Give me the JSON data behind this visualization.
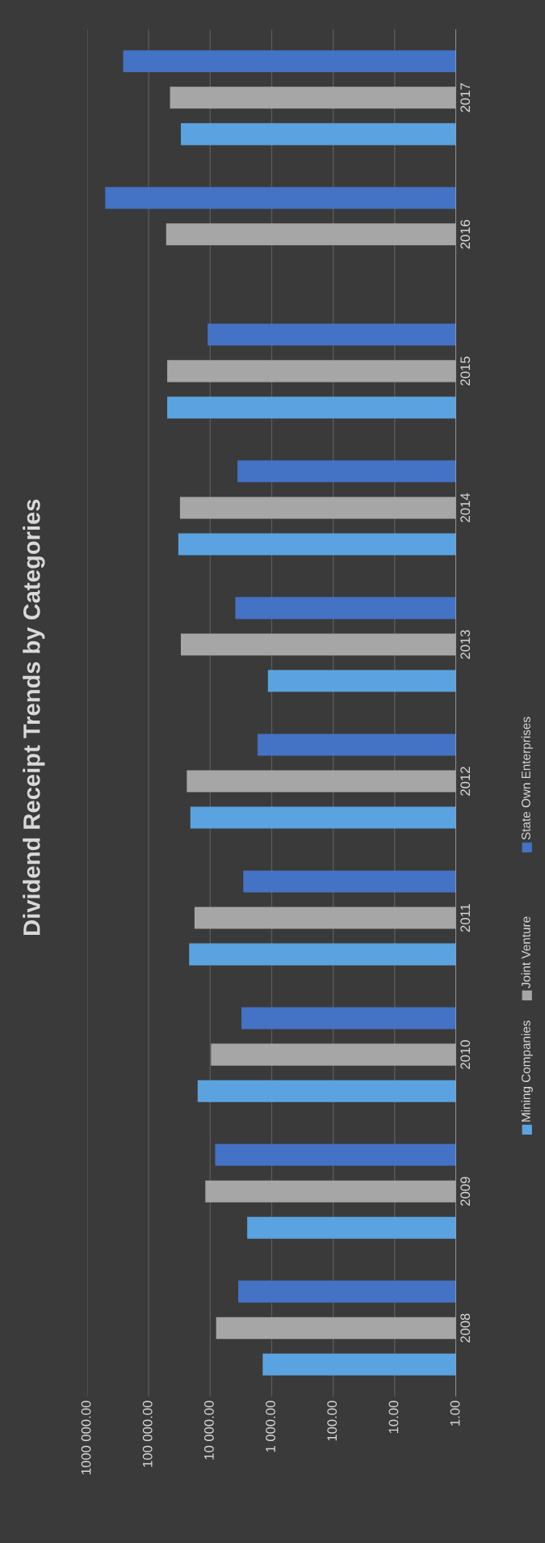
{
  "chart_data": {
    "type": "bar",
    "orientation": "horizontal",
    "title": "Dividend Receipt Trends by Categories",
    "categories": [
      "2017",
      "2016",
      "2015",
      "2014",
      "2013",
      "2012",
      "2011",
      "2010",
      "2009",
      "2008"
    ],
    "series": [
      {
        "name": "Mining Companies",
        "color": "#5ba3e0",
        "values": [
          30000,
          null,
          50000,
          33000,
          1150,
          21000,
          22000,
          16000,
          2500,
          1400
        ]
      },
      {
        "name": "Joint Venture",
        "color": "#a6a6a6",
        "values": [
          45000,
          52000,
          50000,
          31000,
          30000,
          24000,
          18000,
          9700,
          12000,
          8000
        ]
      },
      {
        "name": "State Own Enterprises",
        "color": "#4472c4",
        "values": [
          260000,
          510000,
          11000,
          3600,
          3900,
          1700,
          2900,
          3100,
          8300,
          3500
        ]
      }
    ],
    "log": "x",
    "xlim": [
      1000000,
      1
    ],
    "xticks": [
      {
        "value": 1000000,
        "label": "1000 000.00"
      },
      {
        "value": 100000,
        "label": "100 000.00"
      },
      {
        "value": 10000,
        "label": "10 000.00"
      },
      {
        "value": 1000,
        "label": "1 000.00"
      },
      {
        "value": 100,
        "label": "100.00"
      },
      {
        "value": 10,
        "label": "10.00"
      },
      {
        "value": 1,
        "label": "1.00"
      }
    ],
    "grid": "x",
    "legend": "right"
  }
}
